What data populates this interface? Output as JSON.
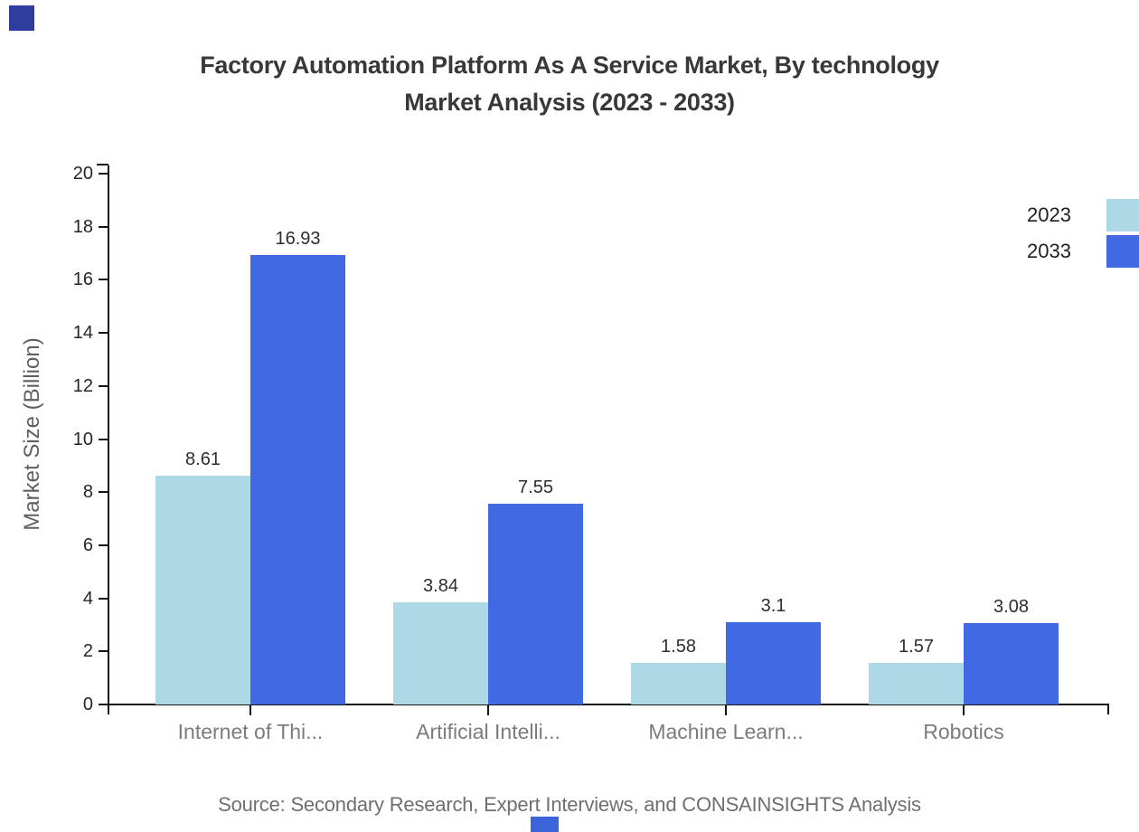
{
  "title": {
    "line1": "Factory Automation Platform As A Service Market, By technology",
    "line2": "Market Analysis (2023 - 2033)"
  },
  "legend": {
    "position": "upper right",
    "entries": [
      {
        "label": "2023",
        "color": "#ADD8E6"
      },
      {
        "label": "2033",
        "color": "#4169E1"
      }
    ]
  },
  "chart_data": {
    "type": "bar",
    "categories": [
      "Internet of Thi...",
      "Artificial Intelli...",
      "Machine Learn...",
      "Robotics"
    ],
    "series": [
      {
        "name": "2023",
        "color": "#ADD8E6",
        "values": [
          8.61,
          3.84,
          1.58,
          1.57
        ]
      },
      {
        "name": "2033",
        "color": "#4169E1",
        "values": [
          16.93,
          7.55,
          3.1,
          3.08
        ]
      }
    ],
    "title": "Factory Automation Platform As A Service Market, By technology Market Analysis (2023 - 2033)",
    "xlabel": "",
    "ylabel": "Market Size (Billion)",
    "ylim": [
      0,
      20
    ],
    "ytick_step": 2,
    "grid": false,
    "legend_position": "upper right",
    "bar_value_labels_shown": true
  },
  "source": {
    "text": "Source: Secondary Research, Expert Interviews, and CONSAINSIGHTS Analysis"
  },
  "branding": {
    "top_left_square_color": "#2e3d9e",
    "bottom_square_color": "#3d63da"
  }
}
